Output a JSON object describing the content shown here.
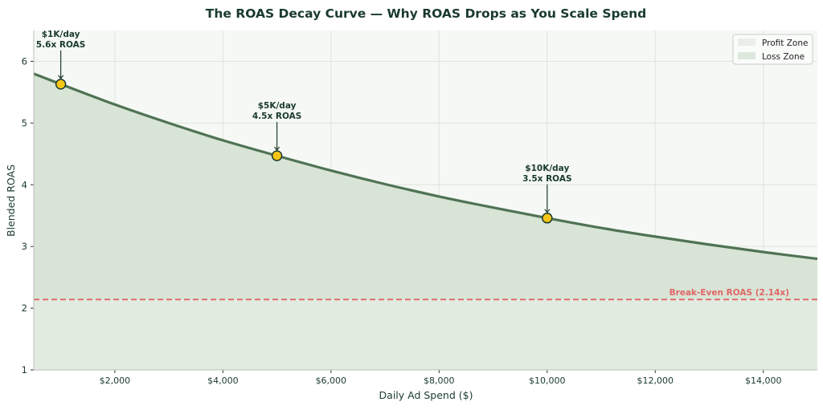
{
  "chart_data": {
    "type": "line",
    "title": "The ROAS Decay Curve — Why ROAS Drops as You Scale Spend",
    "xlabel": "Daily Ad Spend ($)",
    "ylabel": "Blended ROAS",
    "xlim": [
      500,
      15000
    ],
    "ylim": [
      1,
      6.5
    ],
    "xticks": [
      2000,
      4000,
      6000,
      8000,
      10000,
      12000,
      14000
    ],
    "xtick_labels": [
      "$2,000",
      "$4,000",
      "$6,000",
      "$8,000",
      "$10,000",
      "$12,000",
      "$14,000"
    ],
    "yticks": [
      1,
      2,
      3,
      4,
      5,
      6
    ],
    "ytick_labels": [
      "1",
      "2",
      "3",
      "4",
      "5",
      "6"
    ],
    "grid": true,
    "series": [
      {
        "name": "ROAS",
        "x": [
          500,
          1000,
          2000,
          3000,
          4000,
          5000,
          6000,
          7000,
          8000,
          9000,
          10000,
          11000,
          12000,
          13000,
          14000,
          15000
        ],
        "y": [
          5.8,
          5.63,
          5.3,
          5.0,
          4.72,
          4.47,
          4.23,
          4.01,
          3.81,
          3.63,
          3.46,
          3.3,
          3.16,
          3.03,
          2.91,
          2.8
        ],
        "color": "#4f7354"
      }
    ],
    "break_even": {
      "value": 2.14,
      "label": "Break-Even ROAS (2.14x)",
      "color": "#e06666"
    },
    "annotations": [
      {
        "x": 1000,
        "y": 5.63,
        "line1": "$1K/day",
        "line2": "5.6x ROAS"
      },
      {
        "x": 5000,
        "y": 4.47,
        "line1": "$5K/day",
        "line2": "4.5x ROAS"
      },
      {
        "x": 10000,
        "y": 3.46,
        "line1": "$10K/day",
        "line2": "3.5x ROAS"
      }
    ],
    "legend": {
      "placement": "top-right",
      "items": [
        "Profit Zone",
        "Loss Zone"
      ]
    },
    "colors": {
      "profit_fill": "#d8e4d6",
      "loss_fill": "#e2ebe0",
      "background": "#f5f8f4",
      "marker": "#f5c518",
      "text": "#1a3a2e"
    }
  }
}
